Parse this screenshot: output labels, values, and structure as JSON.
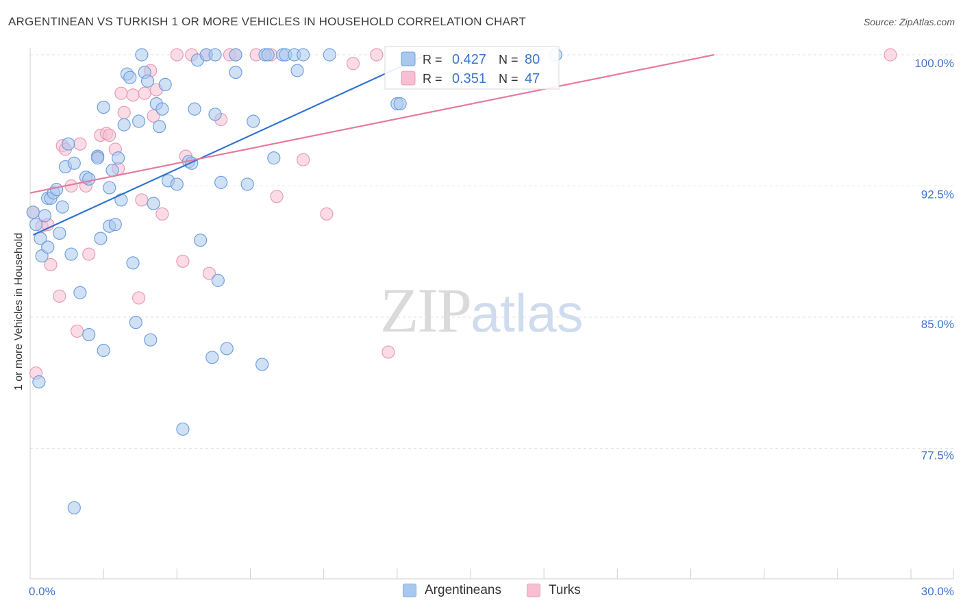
{
  "title": "ARGENTINEAN VS TURKISH 1 OR MORE VEHICLES IN HOUSEHOLD CORRELATION CHART",
  "source": "Source: ZipAtlas.com",
  "watermark": {
    "zip": "ZIP",
    "atlas": "atlas"
  },
  "colors": {
    "blue": "#2f74d0",
    "pink": "#e8799e",
    "blue_fill": "#a9c8ef",
    "pink_fill": "#f7bfd1",
    "axis_text": "#3d74c9"
  },
  "chart_data": {
    "type": "scatter",
    "title": "ARGENTINEAN VS TURKISH 1 OR MORE VEHICLES IN HOUSEHOLD CORRELATION CHART",
    "xlabel": "",
    "ylabel": "1 or more Vehicles in Household",
    "xlim": [
      0,
      30
    ],
    "ylim": [
      70.5,
      101.5
    ],
    "x_tick_labels": [
      {
        "value": 0,
        "label": "0.0%"
      },
      {
        "value": 30,
        "label": "30.0%"
      }
    ],
    "y_tick_labels": [
      {
        "value": 100,
        "label": "100.0%"
      },
      {
        "value": 92.5,
        "label": "92.5%"
      },
      {
        "value": 85,
        "label": "85.0%"
      },
      {
        "value": 77.5,
        "label": "77.5%"
      }
    ],
    "legend": {
      "placement": "top-center",
      "entries": [
        {
          "series": "Argentineans",
          "r_label": "R =",
          "r": "0.427",
          "n_label": "N =",
          "n": "80"
        },
        {
          "series": "Turks",
          "r_label": "R =",
          "r": "0.351",
          "n_label": "N =",
          "n": "47"
        }
      ]
    },
    "series": [
      {
        "name": "Argentineans",
        "trend": {
          "x": [
            0.1,
            13.5
          ],
          "y": [
            89.7,
            100.0
          ]
        },
        "points": [
          [
            0.1,
            91.0
          ],
          [
            0.2,
            90.3
          ],
          [
            0.3,
            81.3
          ],
          [
            0.35,
            89.5
          ],
          [
            0.4,
            88.5
          ],
          [
            0.5,
            90.8
          ],
          [
            0.6,
            89.0
          ],
          [
            0.6,
            91.8
          ],
          [
            0.7,
            91.8
          ],
          [
            0.8,
            92.1
          ],
          [
            0.9,
            92.3
          ],
          [
            1.0,
            89.8
          ],
          [
            1.1,
            91.3
          ],
          [
            1.2,
            93.6
          ],
          [
            1.3,
            94.9
          ],
          [
            1.4,
            88.6
          ],
          [
            1.5,
            93.8
          ],
          [
            1.7,
            86.4
          ],
          [
            1.9,
            93.0
          ],
          [
            2.0,
            92.9
          ],
          [
            2.0,
            84.0
          ],
          [
            2.3,
            94.2
          ],
          [
            2.3,
            94.1
          ],
          [
            2.4,
            89.5
          ],
          [
            2.5,
            97.0
          ],
          [
            2.5,
            83.1
          ],
          [
            2.7,
            90.2
          ],
          [
            2.7,
            92.4
          ],
          [
            2.8,
            93.4
          ],
          [
            2.9,
            90.3
          ],
          [
            3.0,
            94.1
          ],
          [
            3.1,
            91.7
          ],
          [
            3.2,
            96.0
          ],
          [
            3.3,
            98.9
          ],
          [
            3.4,
            98.7
          ],
          [
            3.5,
            88.1
          ],
          [
            3.6,
            84.7
          ],
          [
            3.7,
            96.2
          ],
          [
            3.8,
            100.0
          ],
          [
            3.9,
            99.0
          ],
          [
            4.0,
            98.5
          ],
          [
            4.1,
            83.7
          ],
          [
            4.2,
            91.5
          ],
          [
            4.3,
            97.2
          ],
          [
            4.4,
            95.9
          ],
          [
            4.5,
            96.9
          ],
          [
            4.6,
            98.3
          ],
          [
            4.7,
            92.8
          ],
          [
            5.0,
            92.6
          ],
          [
            5.2,
            78.6
          ],
          [
            5.4,
            93.9
          ],
          [
            5.5,
            93.8
          ],
          [
            5.6,
            96.9
          ],
          [
            5.7,
            99.7
          ],
          [
            5.8,
            89.4
          ],
          [
            6.0,
            100.0
          ],
          [
            6.2,
            82.7
          ],
          [
            6.3,
            100.0
          ],
          [
            6.3,
            96.6
          ],
          [
            6.4,
            87.1
          ],
          [
            6.5,
            92.7
          ],
          [
            6.7,
            83.2
          ],
          [
            7.0,
            100.0
          ],
          [
            7.0,
            99.0
          ],
          [
            7.4,
            92.6
          ],
          [
            7.6,
            96.2
          ],
          [
            7.9,
            82.3
          ],
          [
            8.0,
            100.0
          ],
          [
            8.1,
            100.0
          ],
          [
            8.3,
            94.1
          ],
          [
            8.6,
            100.0
          ],
          [
            8.7,
            100.0
          ],
          [
            9.0,
            100.0
          ],
          [
            9.1,
            99.1
          ],
          [
            9.3,
            100.0
          ],
          [
            10.2,
            100.0
          ],
          [
            12.5,
            97.2
          ],
          [
            12.6,
            97.2
          ],
          [
            17.9,
            100.0
          ],
          [
            1.5,
            74.1
          ]
        ]
      },
      {
        "name": "Turks",
        "trend": {
          "x": [
            0,
            23.3
          ],
          "y": [
            92.1,
            100.0
          ]
        },
        "points": [
          [
            0.1,
            91.0
          ],
          [
            0.2,
            81.8
          ],
          [
            0.4,
            90.2
          ],
          [
            0.6,
            90.3
          ],
          [
            0.7,
            88.0
          ],
          [
            1.0,
            86.2
          ],
          [
            1.1,
            94.8
          ],
          [
            1.2,
            94.6
          ],
          [
            1.4,
            92.5
          ],
          [
            1.6,
            84.2
          ],
          [
            1.7,
            94.9
          ],
          [
            1.9,
            92.5
          ],
          [
            2.0,
            88.6
          ],
          [
            2.3,
            94.2
          ],
          [
            2.4,
            95.4
          ],
          [
            2.6,
            95.5
          ],
          [
            2.7,
            95.4
          ],
          [
            2.9,
            94.6
          ],
          [
            3.0,
            93.5
          ],
          [
            3.1,
            97.8
          ],
          [
            3.2,
            96.7
          ],
          [
            3.5,
            97.7
          ],
          [
            3.7,
            86.1
          ],
          [
            3.8,
            91.7
          ],
          [
            3.9,
            97.8
          ],
          [
            4.1,
            99.1
          ],
          [
            4.2,
            96.5
          ],
          [
            4.3,
            98.0
          ],
          [
            4.5,
            90.9
          ],
          [
            5.0,
            100.0
          ],
          [
            5.2,
            88.2
          ],
          [
            5.3,
            94.2
          ],
          [
            5.5,
            100.0
          ],
          [
            6.0,
            100.0
          ],
          [
            6.1,
            87.5
          ],
          [
            6.5,
            96.3
          ],
          [
            6.8,
            100.0
          ],
          [
            7.0,
            100.0
          ],
          [
            7.7,
            100.0
          ],
          [
            8.2,
            100.0
          ],
          [
            8.4,
            91.9
          ],
          [
            9.3,
            94.0
          ],
          [
            10.1,
            90.9
          ],
          [
            11.0,
            99.5
          ],
          [
            11.8,
            100.0
          ],
          [
            12.2,
            83.0
          ],
          [
            29.3,
            100.0
          ]
        ]
      }
    ]
  },
  "bottom_legend": [
    {
      "label": "Argentineans"
    },
    {
      "label": "Turks"
    }
  ]
}
